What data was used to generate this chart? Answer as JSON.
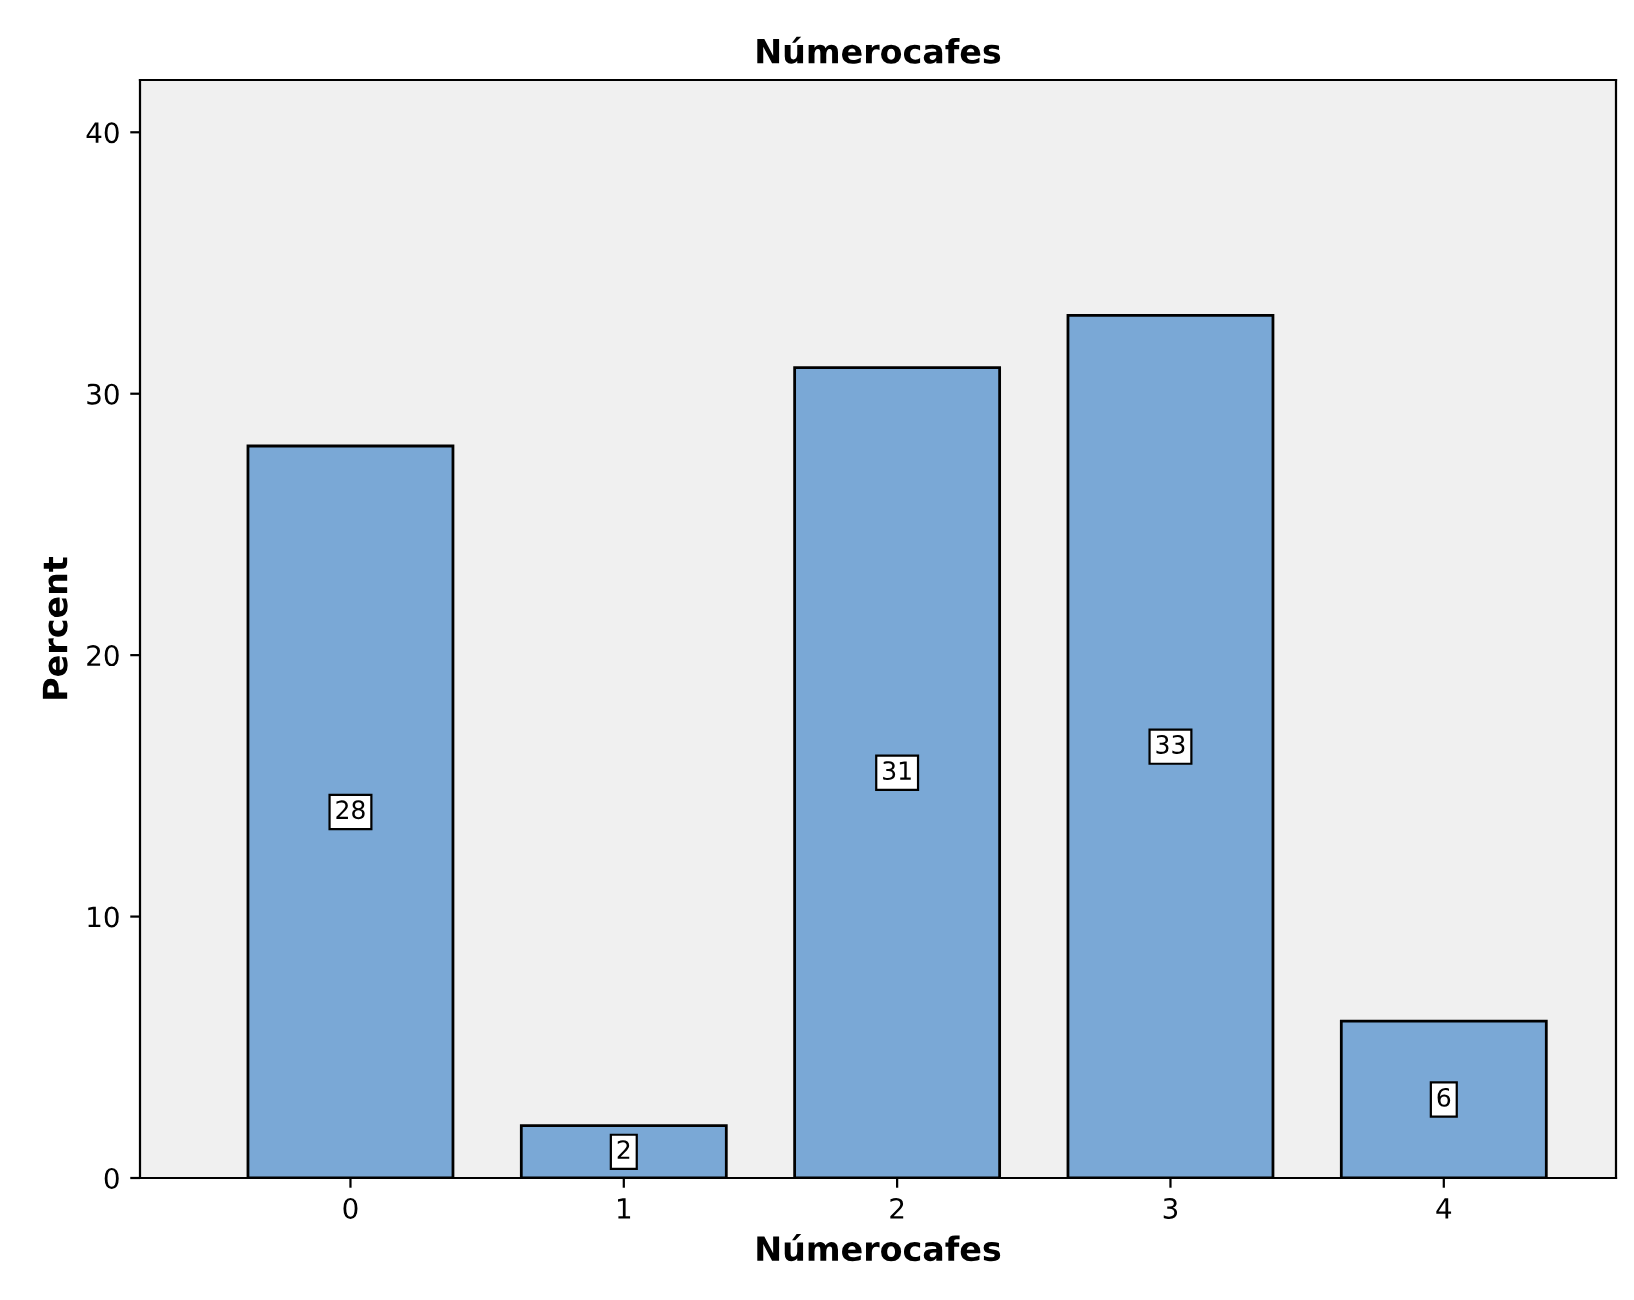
{
  "chart_data": {
    "type": "bar",
    "title": "Númerocafes",
    "xlabel": "Númerocafes",
    "ylabel": "Percent",
    "categories": [
      "0",
      "1",
      "2",
      "3",
      "4"
    ],
    "values": [
      28,
      2,
      31,
      33,
      6
    ],
    "color": "#7aa8d6",
    "ylim": [
      0,
      42
    ],
    "yticks": [
      0,
      10,
      20,
      30,
      40
    ],
    "data_labels": true,
    "grid": false
  }
}
